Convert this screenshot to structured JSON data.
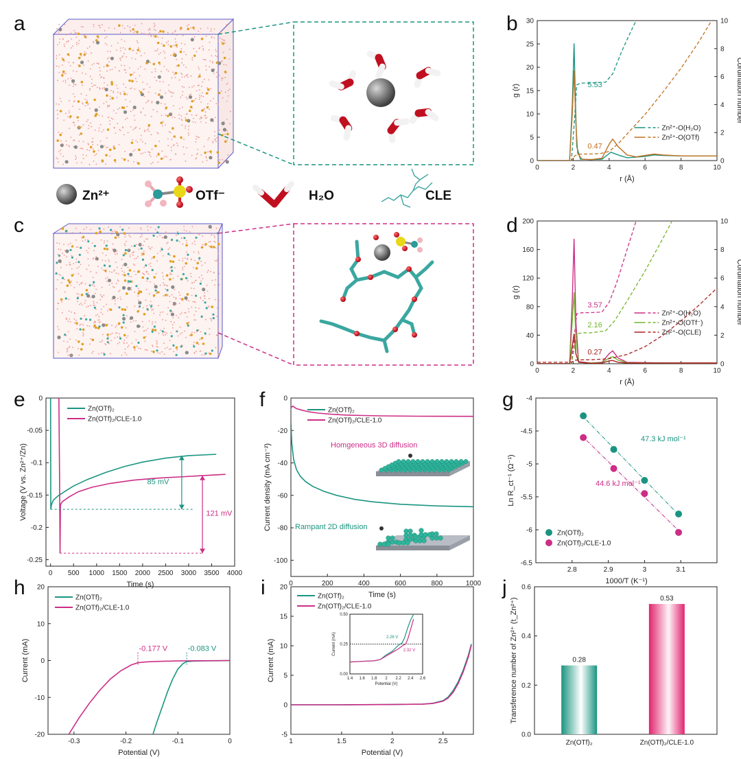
{
  "colors": {
    "teal": "#1a9480",
    "magenta": "#cc2d86",
    "orange": "#cf7a12",
    "green": "#71b52a",
    "darkred": "#a82020",
    "brown": "#c07020",
    "zn": "#8a8a8a"
  },
  "panel_letters": {
    "a": "a",
    "b": "b",
    "c": "c",
    "d": "d",
    "e": "e",
    "f": "f",
    "g": "g",
    "h": "h",
    "i": "i",
    "j": "j"
  },
  "species_legend": [
    {
      "label": "Zn²⁺",
      "icon": "zinc-ion-icon"
    },
    {
      "label": "OTf⁻",
      "icon": "triflate-icon"
    },
    {
      "label": "H₂O",
      "icon": "water-icon"
    },
    {
      "label": "CLE",
      "icon": "cle-polymer-icon"
    }
  ],
  "chart_data": [
    {
      "panel": "b",
      "type": "line",
      "xlabel": "r (Å)",
      "ylabel": "g (r)",
      "y2label": "Cordination number",
      "xlim": [
        0,
        10
      ],
      "ylim": [
        0,
        30
      ],
      "y2lim": [
        0,
        10
      ],
      "xticks": [
        0,
        2,
        4,
        6,
        8,
        10
      ],
      "yticks": [
        0,
        5,
        10,
        15,
        20,
        25,
        30
      ],
      "y2ticks": [
        0,
        2,
        4,
        6,
        8,
        10
      ],
      "series": [
        {
          "name": "Zn²⁺-O(H₂O)",
          "kind": "rdf",
          "color": "teal",
          "x": [
            0,
            1.8,
            1.95,
            2.05,
            2.12,
            2.2,
            2.4,
            3,
            3.6,
            4.1,
            4.5,
            5,
            6,
            6.5,
            7,
            8,
            9,
            10
          ],
          "y": [
            0,
            0,
            12,
            25.1,
            14,
            3,
            0.3,
            0.2,
            0.3,
            1.8,
            1.2,
            0.6,
            0.9,
            1.2,
            1.1,
            1,
            1,
            1
          ]
        },
        {
          "name": "Zn²⁺-O(H₂O)",
          "kind": "cn",
          "color": "teal",
          "x": [
            0,
            1.9,
            2.05,
            2.2,
            2.4,
            3,
            3.8,
            4.2,
            4.7,
            5.2,
            5.5
          ],
          "y": [
            0,
            0,
            2.5,
            5.4,
            5.53,
            5.55,
            5.6,
            6.2,
            7.8,
            9.2,
            10
          ]
        },
        {
          "name": "Zn²⁺-O(OTf)",
          "kind": "rdf",
          "color": "brown",
          "x": [
            0,
            1.8,
            1.95,
            2.05,
            2.15,
            2.25,
            2.5,
            3,
            3.6,
            4,
            4.2,
            4.5,
            5,
            5.5,
            6,
            6.5,
            7,
            8,
            9,
            10
          ],
          "y": [
            0,
            0,
            10,
            19.3,
            8,
            1.5,
            0.3,
            0.2,
            0.5,
            3.5,
            4.6,
            3,
            1.2,
            0.8,
            1.1,
            1.4,
            1.2,
            1,
            1,
            1
          ]
        },
        {
          "name": "Zn²⁺-O(OTf)",
          "kind": "cn",
          "color": "brown",
          "x": [
            0,
            1.9,
            2.1,
            2.3,
            3,
            3.5,
            4,
            4.5,
            5,
            6,
            7,
            8,
            9,
            9.7
          ],
          "y": [
            0,
            0,
            0.35,
            0.46,
            0.47,
            0.5,
            0.65,
            1.2,
            1.9,
            3.3,
            4.9,
            6.6,
            8.5,
            10
          ]
        }
      ],
      "annotations": [
        {
          "text": "5.53",
          "x": 2.8,
          "y2": 5.1,
          "color": "teal"
        },
        {
          "text": "0.47",
          "x": 2.8,
          "y2": 0.7,
          "color": "brown"
        }
      ]
    },
    {
      "panel": "d",
      "type": "line",
      "xlabel": "r (Å)",
      "ylabel": "g (r)",
      "y2label": "Cordination number",
      "xlim": [
        0,
        10
      ],
      "ylim": [
        0,
        200
      ],
      "y2lim": [
        0,
        10
      ],
      "xticks": [
        0,
        2,
        4,
        6,
        8,
        10
      ],
      "yticks": [
        0,
        40,
        80,
        120,
        160,
        200
      ],
      "y2ticks": [
        0,
        2,
        4,
        6,
        8,
        10
      ],
      "series": [
        {
          "name": "Zn²⁺-O(H₂O)",
          "kind": "rdf",
          "color": "magenta",
          "x": [
            0,
            1.8,
            1.95,
            2.05,
            2.15,
            2.3,
            3,
            3.6,
            4,
            4.2,
            4.5,
            5,
            6,
            7,
            8,
            10
          ],
          "y": [
            0,
            0,
            90,
            175,
            60,
            3,
            1,
            2,
            14,
            18,
            8,
            2,
            1.5,
            1.2,
            1,
            1
          ]
        },
        {
          "name": "Zn²⁺-O(H₂O)",
          "kind": "cn",
          "color": "magenta",
          "x": [
            0,
            1.9,
            2.05,
            2.2,
            2.5,
            3,
            3.6,
            4,
            4.4,
            4.8,
            5.2,
            5.5
          ],
          "y": [
            0,
            0,
            1.8,
            3.5,
            3.57,
            3.58,
            3.62,
            4.3,
            5.6,
            7.2,
            8.8,
            10
          ]
        },
        {
          "name": "Zn²⁺-O(OTf⁻)",
          "kind": "rdf",
          "color": "green",
          "x": [
            0,
            1.8,
            1.95,
            2.05,
            2.15,
            2.3,
            3,
            3.6,
            4,
            4.2,
            4.5,
            5,
            6,
            10
          ],
          "y": [
            0,
            0,
            60,
            100,
            35,
            2,
            1,
            1.5,
            8,
            10,
            5,
            1.5,
            1,
            1
          ]
        },
        {
          "name": "Zn²⁺-O(OTf⁻)",
          "kind": "cn",
          "color": "green",
          "x": [
            0,
            1.9,
            2.05,
            2.2,
            2.5,
            3,
            3.8,
            4.3,
            5,
            6,
            7,
            7.5
          ],
          "y": [
            0,
            0,
            1,
            2.1,
            2.16,
            2.17,
            2.3,
            3,
            4.4,
            6.5,
            8.8,
            10
          ]
        },
        {
          "name": "Zn²⁺-O(CLE)",
          "kind": "rdf",
          "color": "darkred",
          "x": [
            0,
            1.8,
            1.95,
            2.05,
            2.15,
            2.3,
            3,
            3.6,
            4,
            4.2,
            4.5,
            5,
            6,
            7,
            10
          ],
          "y": [
            0,
            0,
            25,
            42,
            14,
            2,
            0.5,
            1,
            4,
            4.5,
            2,
            1,
            1,
            1,
            1
          ]
        },
        {
          "name": "Zn²⁺-O(CLE)",
          "kind": "cn",
          "color": "darkred",
          "x": [
            0,
            1.9,
            2.1,
            2.4,
            3,
            4,
            5,
            6,
            7,
            8,
            9,
            10
          ],
          "y": [
            0.1,
            0.1,
            0.25,
            0.27,
            0.28,
            0.35,
            0.65,
            1.2,
            2,
            3,
            4.1,
            5.3
          ]
        }
      ],
      "annotations": [
        {
          "text": "3.57",
          "x": 2.8,
          "y2": 3.8,
          "color": "magenta"
        },
        {
          "text": "2.16",
          "x": 2.8,
          "y2": 2.4,
          "color": "green"
        },
        {
          "text": "0.27",
          "x": 2.8,
          "y2": 0.5,
          "color": "darkred"
        }
      ]
    },
    {
      "panel": "e",
      "type": "line",
      "xlabel": "Time (s)",
      "ylabel": "Voltage (V vs. Zn²⁺/Zn)",
      "xlim": [
        -100,
        4000
      ],
      "ylim": [
        -0.26,
        0.0
      ],
      "xticks": [
        0,
        500,
        1000,
        1500,
        2000,
        2500,
        3000,
        3500,
        4000
      ],
      "yticks": [
        0.0,
        -0.05,
        -0.1,
        -0.15,
        -0.2,
        -0.25
      ],
      "series": [
        {
          "name": "Zn(OTf)₂",
          "color": "teal",
          "x": [
            0,
            5,
            20,
            60,
            150,
            300,
            500,
            800,
            1200,
            1600,
            2000,
            2500,
            3000,
            3600
          ],
          "y": [
            0,
            -0.172,
            -0.165,
            -0.158,
            -0.152,
            -0.145,
            -0.136,
            -0.126,
            -0.115,
            -0.106,
            -0.099,
            -0.093,
            -0.089,
            -0.087
          ]
        },
        {
          "name": "Zn(OTf)₂/CLE-1.0",
          "color": "magenta",
          "x": [
            180,
            195,
            205,
            215,
            260,
            400,
            600,
            900,
            1300,
            1800,
            2300,
            2800,
            3300,
            3800
          ],
          "y": [
            0,
            -0.12,
            -0.24,
            -0.165,
            -0.16,
            -0.153,
            -0.145,
            -0.138,
            -0.132,
            -0.127,
            -0.124,
            -0.122,
            -0.12,
            -0.118
          ]
        }
      ],
      "annotations": [
        {
          "text": "85 mV",
          "x": 2800,
          "y": -0.128,
          "color": "teal"
        },
        {
          "text": "121 mV",
          "x": 3500,
          "y": -0.178,
          "color": "magenta"
        }
      ]
    },
    {
      "panel": "f",
      "type": "line",
      "xlabel": "Time (s)",
      "ylabel": "Current density (mA cm⁻²)",
      "xlim": [
        0,
        1000
      ],
      "ylim": [
        -110,
        0
      ],
      "xticks": [
        0,
        200,
        400,
        600,
        800,
        1000
      ],
      "yticks": [
        0,
        -20,
        -40,
        -60,
        -80,
        -100
      ],
      "series": [
        {
          "name": "Zn(OTf)₂",
          "color": "teal",
          "x": [
            0,
            5,
            15,
            30,
            50,
            80,
            120,
            180,
            250,
            350,
            450,
            600,
            800,
            1000
          ],
          "y": [
            -15,
            -28,
            -38,
            -44,
            -48,
            -51.5,
            -54.5,
            -57.5,
            -60,
            -62.5,
            -64,
            -65.5,
            -66.5,
            -67
          ]
        },
        {
          "name": "Zn(OTf)₂/CLE-1.0",
          "color": "magenta",
          "x": [
            0,
            10,
            30,
            60,
            100,
            150,
            220,
            300,
            400,
            500,
            700,
            1000
          ],
          "y": [
            -6,
            -5,
            -6.5,
            -7.5,
            -8.5,
            -9.3,
            -10,
            -10.5,
            -10.8,
            -11,
            -11.2,
            -11.3
          ]
        }
      ],
      "annotations": [
        {
          "text": "Homgeneous 3D diffusion",
          "color": "magenta"
        },
        {
          "text": "Rampant 2D diffusion",
          "color": "teal"
        }
      ]
    },
    {
      "panel": "g",
      "type": "scatter",
      "xlabel": "1000/T (K⁻¹)",
      "ylabel": "Ln R_ct⁻¹ (Ω⁻¹)",
      "xlim": [
        2.7,
        3.2
      ],
      "ylim": [
        -6.5,
        -4.0
      ],
      "xticks": [
        2.8,
        2.9,
        3.0,
        3.1
      ],
      "yticks": [
        -4.0,
        -4.5,
        -5.0,
        -5.5,
        -6.0,
        -6.5
      ],
      "series": [
        {
          "name": "Zn(OTf)₂",
          "color": "teal",
          "x": [
            2.831,
            2.915,
            3.0,
            3.094
          ],
          "y": [
            -4.27,
            -4.78,
            -5.25,
            -5.76
          ]
        },
        {
          "name": "Zn(OTf)₂/CLE-1.0",
          "color": "magenta",
          "x": [
            2.831,
            2.915,
            3.0,
            3.094
          ],
          "y": [
            -4.6,
            -5.07,
            -5.45,
            -6.04
          ]
        }
      ],
      "annotations": [
        {
          "text": "47.3 kJ mol⁻¹",
          "color": "teal"
        },
        {
          "text": "44.6 kJ mol⁻¹",
          "color": "magenta"
        }
      ]
    },
    {
      "panel": "h",
      "type": "line",
      "xlabel": "Potential (V)",
      "ylabel": "Current (mA)",
      "xlim": [
        -0.35,
        0.0
      ],
      "ylim": [
        -20,
        20
      ],
      "xticks": [
        -0.3,
        -0.2,
        -0.1,
        0.0
      ],
      "yticks": [
        20,
        10,
        0,
        -10,
        -20
      ],
      "series": [
        {
          "name": "Zn(OTf)₂",
          "color": "teal",
          "x": [
            -0.148,
            -0.14,
            -0.13,
            -0.12,
            -0.11,
            -0.1,
            -0.09,
            -0.083,
            -0.07,
            -0.05,
            -0.02,
            0
          ],
          "y": [
            -20,
            -16.5,
            -12.5,
            -8.5,
            -5,
            -2.3,
            -0.8,
            -0.3,
            -0.15,
            -0.1,
            -0.05,
            0
          ]
        },
        {
          "name": "Zn(OTf)₂/CLE-1.0",
          "color": "magenta",
          "x": [
            -0.31,
            -0.29,
            -0.27,
            -0.25,
            -0.23,
            -0.21,
            -0.19,
            -0.177,
            -0.16,
            -0.13,
            -0.1,
            -0.05,
            0
          ],
          "y": [
            -20,
            -15.5,
            -11.5,
            -8,
            -5,
            -2.8,
            -1.2,
            -0.6,
            -0.35,
            -0.2,
            -0.12,
            -0.06,
            0
          ]
        }
      ],
      "annotations": [
        {
          "text": "-0.177 V",
          "color": "magenta"
        },
        {
          "text": "-0.083 V",
          "color": "teal"
        }
      ]
    },
    {
      "panel": "i",
      "type": "line",
      "xlabel": "Potential (V)",
      "ylabel": "Current (mA)",
      "xlim": [
        1.0,
        2.8
      ],
      "ylim": [
        -5,
        20
      ],
      "xticks": [
        1.0,
        1.5,
        2.0,
        2.5
      ],
      "yticks": [
        -5,
        0,
        5,
        10,
        15,
        20
      ],
      "series": [
        {
          "name": "Zn(OTf)₂",
          "color": "teal",
          "x": [
            1,
            1.5,
            2,
            2.3,
            2.4,
            2.5,
            2.55,
            2.6,
            2.65,
            2.7,
            2.75,
            2.78
          ],
          "y": [
            0,
            0,
            0.05,
            0.12,
            0.25,
            0.7,
            1.3,
            2.4,
            3.9,
            5.9,
            8.4,
            10.3
          ]
        },
        {
          "name": "Zn(OTf)₂/CLE-1.0",
          "color": "magenta",
          "x": [
            1,
            1.5,
            2,
            2.3,
            2.4,
            2.5,
            2.55,
            2.6,
            2.65,
            2.7,
            2.75,
            2.78
          ],
          "y": [
            0,
            0,
            0.05,
            0.1,
            0.22,
            0.6,
            1.15,
            2.1,
            3.6,
            5.6,
            8.1,
            10.1
          ]
        }
      ],
      "inset": {
        "xlabel": "Potential (V)",
        "ylabel": "Current (mA)",
        "xlim": [
          1.4,
          2.6
        ],
        "ylim": [
          0,
          0.5
        ],
        "xticks": [
          1.4,
          1.6,
          1.8,
          2.0,
          2.2,
          2.4,
          2.6
        ],
        "yticks": [
          0.0,
          0.25,
          0.5
        ],
        "ytick_labels": [
          "0.00",
          "0.25",
          "0.50"
        ],
        "series": [
          {
            "name": "Zn(OTf)₂",
            "color": "teal",
            "x": [
              1.4,
              1.6,
              1.8,
              1.9,
              2.0,
              2.1,
              2.2,
              2.26,
              2.3,
              2.35,
              2.4,
              2.45
            ],
            "y": [
              0.1,
              0.105,
              0.11,
              0.12,
              0.16,
              0.19,
              0.24,
              0.26,
              0.3,
              0.38,
              0.45,
              0.5
            ]
          },
          {
            "name": "Zn(OTf)₂/CLE-1.0",
            "color": "magenta",
            "x": [
              1.4,
              1.6,
              1.8,
              1.9,
              2.0,
              2.1,
              2.2,
              2.28,
              2.32,
              2.36,
              2.4,
              2.45
            ],
            "y": [
              0.1,
              0.105,
              0.11,
              0.12,
              0.15,
              0.18,
              0.21,
              0.24,
              0.25,
              0.3,
              0.37,
              0.46
            ]
          }
        ],
        "annotations": [
          {
            "text": "2.26 V",
            "color": "teal"
          },
          {
            "text": "2.32 V",
            "color": "magenta"
          }
        ]
      }
    },
    {
      "panel": "j",
      "type": "bar",
      "ylabel": "Transference number of Zn²⁺ (t_Zn²⁺)",
      "categories": [
        "Zn(OTf)₂",
        "Zn(OTf)₂/CLE-1.0"
      ],
      "values": [
        0.28,
        0.53
      ],
      "value_labels": [
        "0.28",
        "0.53"
      ],
      "colors": [
        "teal",
        "magenta"
      ],
      "ylim": [
        0.0,
        0.6
      ],
      "yticks": [
        0.0,
        0.2,
        0.4,
        0.6
      ],
      "ytick_labels": [
        "0.0",
        "0.2",
        "0.4",
        "0.6"
      ]
    }
  ]
}
